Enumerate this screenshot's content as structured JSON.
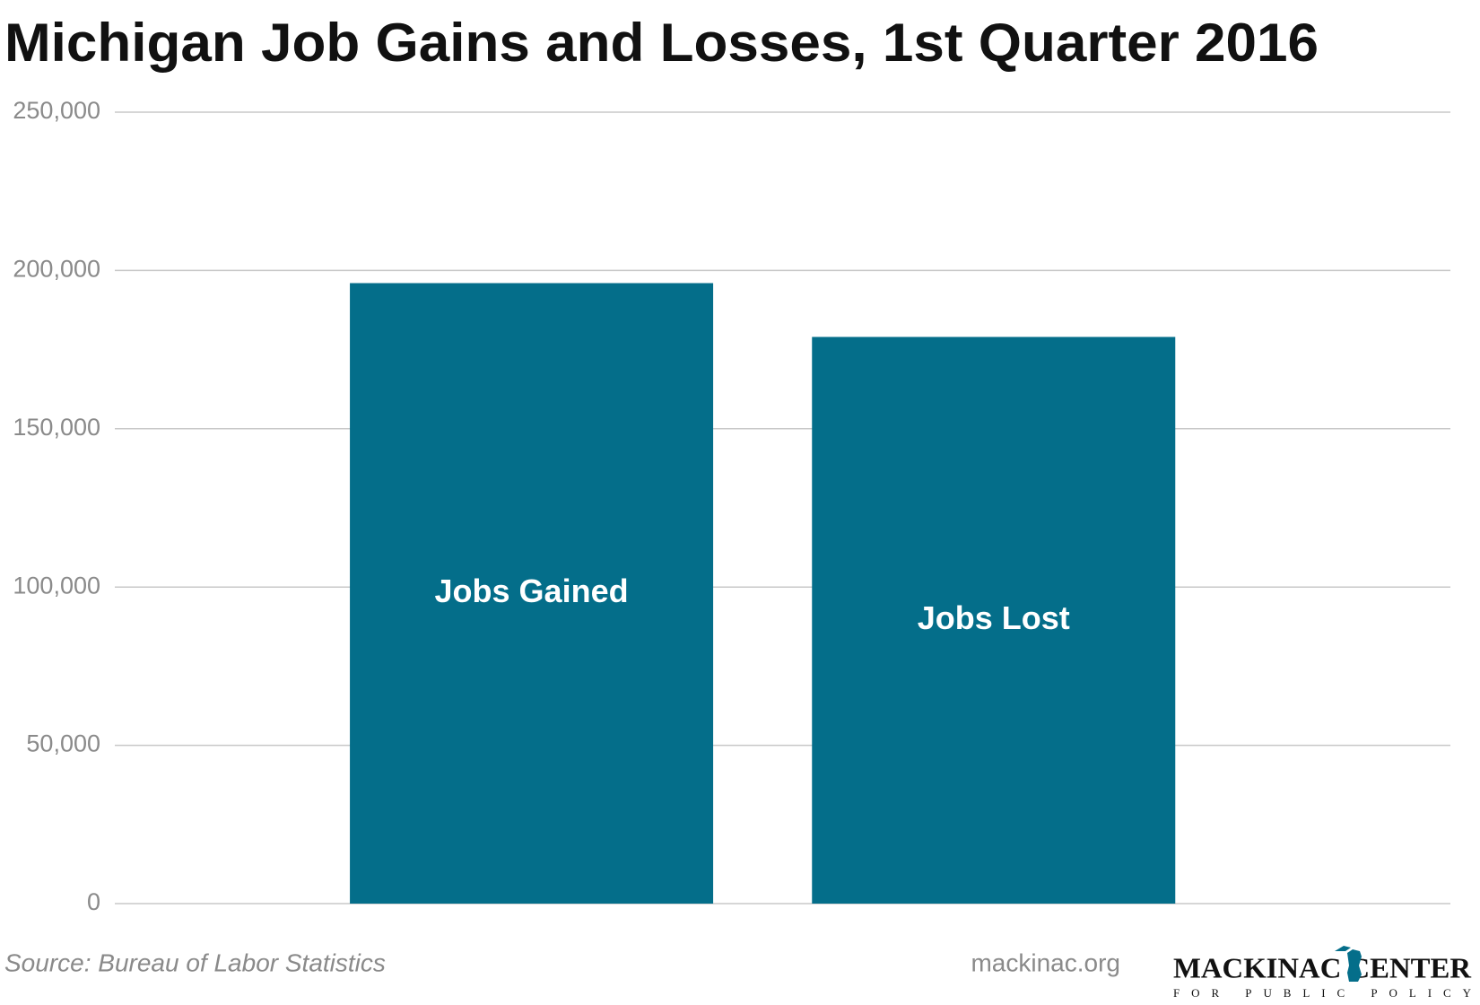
{
  "chart_data": {
    "type": "bar",
    "title": "Michigan Job Gains and Losses, 1st Quarter 2016",
    "categories": [
      "Jobs Gained",
      "Jobs Lost"
    ],
    "values": [
      196000,
      179000
    ],
    "color": "#046e8a",
    "ylim": [
      0,
      250000
    ],
    "yticks": [
      0,
      {
        "value": 50000,
        "label": "50,000"
      },
      {
        "value": 100000,
        "label": "100,000"
      },
      {
        "value": 150000,
        "label": "150,000"
      },
      {
        "value": 200000,
        "label": "200,000"
      },
      {
        "value": 250000,
        "label": "250,000"
      }
    ],
    "grid": true,
    "source": "Source: Bureau of Labor Statistics",
    "website": "mackinac.org",
    "logo": {
      "name": "MACKINAC CENTER",
      "tagline": "FOR PUBLIC POLICY"
    }
  }
}
